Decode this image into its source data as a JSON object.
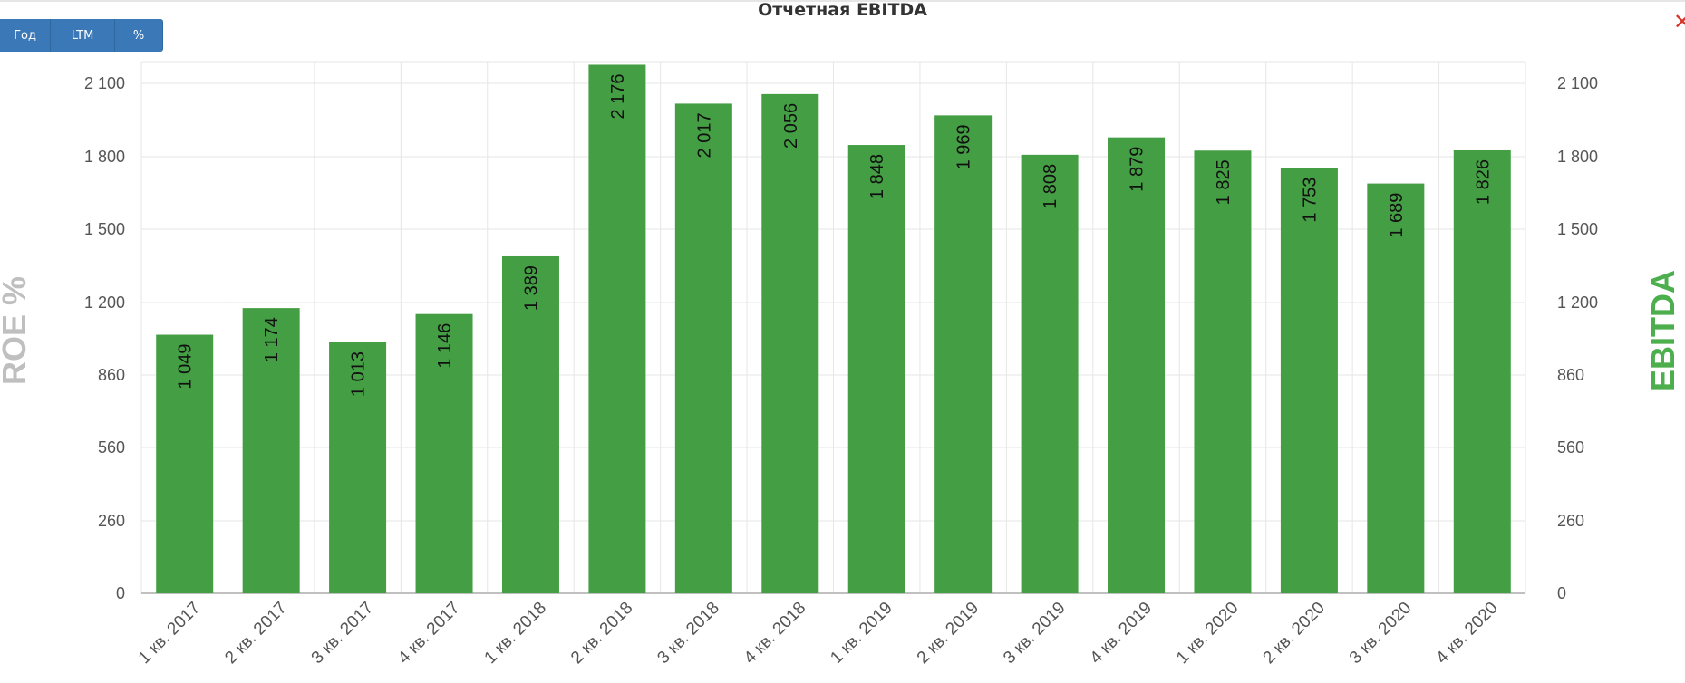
{
  "header": {
    "title": "Отчетная EBITDA"
  },
  "buttons": [
    {
      "label": "Год"
    },
    {
      "label": "LTM"
    },
    {
      "label": "%"
    }
  ],
  "close": {
    "glyph": "✕",
    "icon": "close-icon"
  },
  "chart_data": {
    "type": "bar",
    "title": "Отчетная EBITDA",
    "ylabel_left": "ROE %",
    "ylabel_right": "EBITDA",
    "categories": [
      "1 кв. 2017",
      "2 кв. 2017",
      "3 кв. 2017",
      "4 кв. 2017",
      "1 кв. 2018",
      "2 кв. 2018",
      "3 кв. 2018",
      "4 кв. 2018",
      "1 кв. 2019",
      "2 кв. 2019",
      "3 кв. 2019",
      "4 кв. 2019",
      "1 кв. 2020",
      "2 кв. 2020",
      "3 кв. 2020",
      "4 кв. 2020"
    ],
    "values": [
      1049,
      1174,
      1013,
      1146,
      1389,
      2176,
      2017,
      2056,
      1848,
      1969,
      1808,
      1879,
      1825,
      1753,
      1689,
      1826
    ],
    "value_labels": [
      "1 049",
      "1 174",
      "1 013",
      "1 146",
      "1 389",
      "2 176",
      "2 017",
      "2 056",
      "1 848",
      "1 969",
      "1 808",
      "1 879",
      "1 825",
      "1 753",
      "1 689",
      "1 826"
    ],
    "ticks": [
      0,
      260,
      560,
      860,
      1200,
      1500,
      1800,
      2100
    ],
    "tick_labels": [
      "0",
      "260",
      "560",
      "860",
      "1 200",
      "1 500",
      "1 800",
      "2 100"
    ],
    "ylim": [
      0,
      2180
    ],
    "grid": true,
    "bar_color": "#449e43",
    "right_label_color": "#4cae4c",
    "left_label_color": "#bfbfbf"
  }
}
